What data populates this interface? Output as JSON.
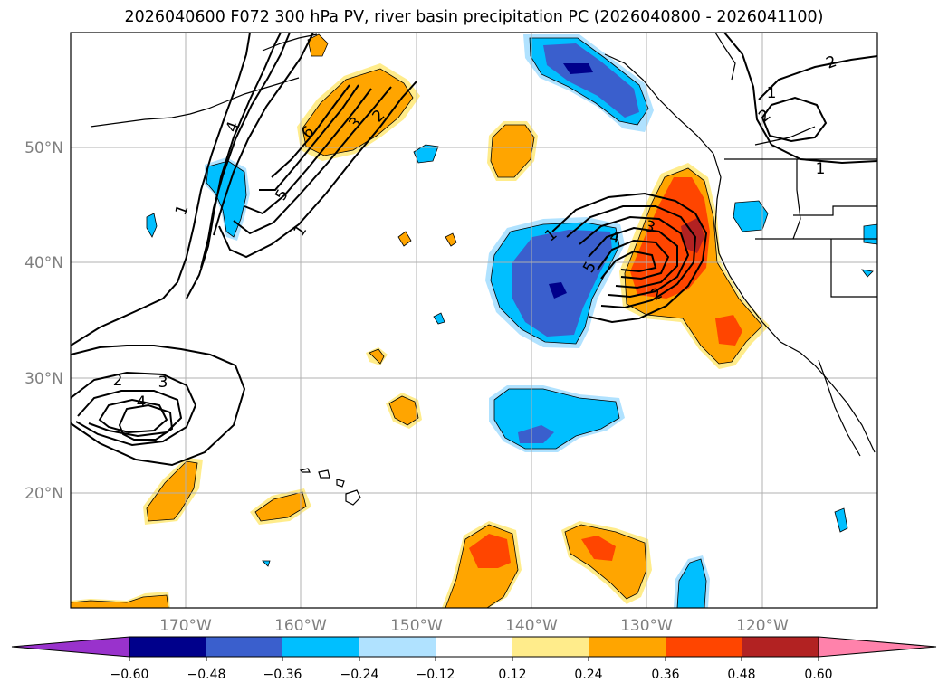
{
  "title": "2026040600 F072 300 hPa PV, river basin precipitation PC (2026040800 - 2026041100)",
  "axes": {
    "lon_labels": [
      "170°W",
      "160°W",
      "150°W",
      "140°W",
      "130°W",
      "120°W"
    ],
    "lat_labels": [
      "50°N",
      "40°N",
      "30°N",
      "20°N"
    ]
  },
  "colorbar": {
    "ticks": [
      "−0.60",
      "−0.48",
      "−0.36",
      "−0.24",
      "−0.12",
      "0.12",
      "0.24",
      "0.36",
      "0.48",
      "0.60"
    ],
    "colors": [
      "#9932cc",
      "#00008b",
      "#3a5fcd",
      "#00bfff",
      "#b0e2ff",
      "#ffffff",
      "#ffec8b",
      "#ffa500",
      "#ff4500",
      "#b22222",
      "#ff82ab"
    ]
  },
  "contour_labels": [
    {
      "text": "1"
    },
    {
      "text": "2"
    },
    {
      "text": "3"
    },
    {
      "text": "4"
    },
    {
      "text": "5"
    },
    {
      "text": "6"
    },
    {
      "text": "2"
    },
    {
      "text": "3"
    },
    {
      "text": "4"
    },
    {
      "text": "1"
    },
    {
      "text": "1"
    },
    {
      "text": "2"
    },
    {
      "text": "3"
    },
    {
      "text": "4"
    },
    {
      "text": "5"
    },
    {
      "text": "1"
    },
    {
      "text": "2"
    },
    {
      "text": "2"
    },
    {
      "text": "1"
    }
  ]
}
